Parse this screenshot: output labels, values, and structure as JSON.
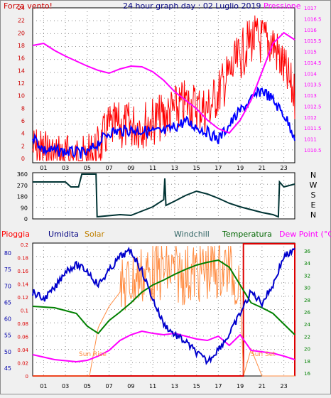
{
  "top_panel": {
    "left_title": "Forza vento!",
    "center_title": "24 hour graph day : 02 Luglio 2019",
    "right_title": "Pressione",
    "left_ticks": [
      "24",
      "22",
      "20",
      "18",
      "16",
      "14",
      "12",
      "10",
      "8",
      "6",
      "4",
      "2",
      "0"
    ],
    "right_ticks": [
      "1017",
      "1016.5",
      "1016",
      "1015.5",
      "1015",
      "1014.5",
      "1014",
      "1013.5",
      "1013",
      "1012.5",
      "1012",
      "1011.5",
      "1011",
      "1010.5"
    ]
  },
  "mid_panel": {
    "left_ticks": [
      "360",
      "270",
      "180",
      "90",
      "0"
    ],
    "compass": [
      "N",
      "W",
      "S",
      "E",
      "N"
    ]
  },
  "bottom_panel": {
    "labels": {
      "pioggia": "Pioggia",
      "umidita": "Umidita",
      "solar": "Solar",
      "windchill": "Windchill",
      "temperatura": "Temperatura",
      "dewpoint": "Dew Point (°C)"
    },
    "rain_ticks": [
      "0.2",
      "0.18",
      "0.16",
      "0.14",
      "0.12",
      "0.1",
      "0.08",
      "0.06",
      "0.04",
      "0.02",
      "0"
    ],
    "hum_ticks": [
      "80",
      "75",
      "70",
      "65",
      "60",
      "55",
      "50",
      "45"
    ],
    "temp_ticks": [
      "36",
      "34",
      "32",
      "30",
      "28",
      "26",
      "24",
      "22",
      "20",
      "18",
      "16"
    ],
    "sun_rise": "Sun Rise",
    "sun_set": "Sun Set"
  },
  "hours": [
    "01",
    "03",
    "05",
    "07",
    "09",
    "11",
    "13",
    "15",
    "17",
    "19",
    "21",
    "23"
  ],
  "colors": {
    "wind": "#ff0000",
    "wind_avg": "#0000ff",
    "pressure": "#ff00ff",
    "direction": "#003333",
    "humidity": "#0000cc",
    "temperature": "#008000",
    "solar": "#ff8c42",
    "rain": "#dd0000",
    "dewpoint": "#ff00ff"
  }
}
